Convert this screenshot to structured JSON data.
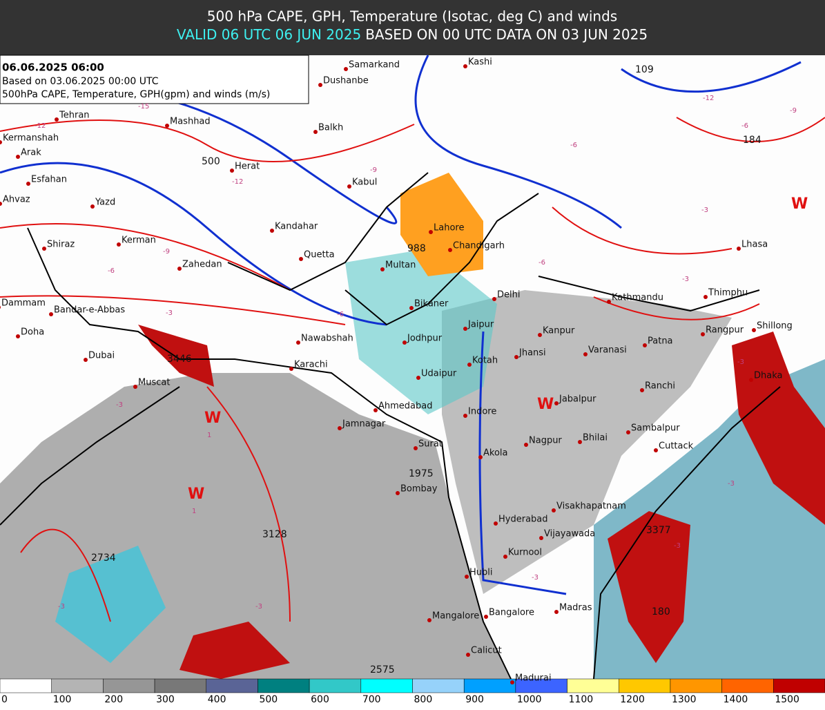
{
  "header": {
    "title": "500 hPa CAPE, GPH, Temperature (Isotac, deg C) and winds",
    "valid": "VALID 06 UTC 06 JUN 2025",
    "based": "BASED ON 00 UTC DATA ON 03 JUN 2025"
  },
  "info": {
    "date": "06.06.2025 06:00",
    "based": "Based on 03.06.2025 00:00 UTC",
    "description": "500hPa CAPE, Temperature, GPH(gpm) and winds (m/s)"
  },
  "map": {
    "cities": [
      "Samarkand",
      "Kashi",
      "Dushanbe",
      "Tehran",
      "Mashhad",
      "Balkh",
      "Kermanshah",
      "Arak",
      "Herat",
      "Kabul",
      "Esfahan",
      "Yazd",
      "Ahvaz",
      "Kandahar",
      "Lahore",
      "Kerman",
      "Shiraz",
      "Chandigarh",
      "Quetta",
      "Multan",
      "Zahedan",
      "Lhasa",
      "Delhi",
      "Bikaner",
      "Kathmandu",
      "Thimphu",
      "Dammam",
      "Bandar-e-Abbas",
      "Jaipur",
      "Kanpur",
      "Rangpur",
      "Shillong",
      "Doha",
      "Nawabshah",
      "Jodhpur",
      "Patna",
      "Dubai",
      "Varanasi",
      "Jhansi",
      "Kotah",
      "Karachi",
      "Udaipur",
      "Dhaka",
      "Muscat",
      "Ranchi",
      "Jabalpur",
      "Ahmedabad",
      "Indore",
      "Jamnagar",
      "Sambalpur",
      "Nagpur",
      "Bhilai",
      "Surat",
      "Cuttack",
      "Akola",
      "Bombay",
      "Visakhapatnam",
      "Hyderabad",
      "Vijayawada",
      "Kurnool",
      "Hubli",
      "Madras",
      "Bangalore",
      "Mangalore",
      "Calicut",
      "Madurai"
    ],
    "values": [
      "109",
      "184",
      "500",
      "988",
      "3446",
      "1975",
      "3128",
      "2734",
      "3377",
      "180",
      "2575"
    ],
    "warm_marks": [
      "W",
      "W",
      "W",
      "W"
    ],
    "isotherms": [
      "-15",
      "-12",
      "-12",
      "-9",
      "-9",
      "-6",
      "-3",
      "-6",
      "-6",
      "-6",
      "-3",
      "-3",
      "-12",
      "-6",
      "-3",
      "-3",
      "-3",
      "-3",
      "-3",
      "-3",
      "-3",
      "-9",
      "1",
      "1"
    ]
  },
  "colorbar": {
    "ticks": [
      0,
      100,
      200,
      300,
      400,
      500,
      600,
      700,
      800,
      900,
      1000,
      1100,
      1200,
      1300,
      1400,
      1500
    ],
    "colors": [
      "#ffffff",
      "#b4b4b4",
      "#969696",
      "#787878",
      "#5a6496",
      "#008080",
      "#32c8c8",
      "#00ffff",
      "#96d2fa",
      "#00a0ff",
      "#3c64ff",
      "#ffff96",
      "#ffc800",
      "#ff9600",
      "#ff6400",
      "#c00000"
    ]
  }
}
